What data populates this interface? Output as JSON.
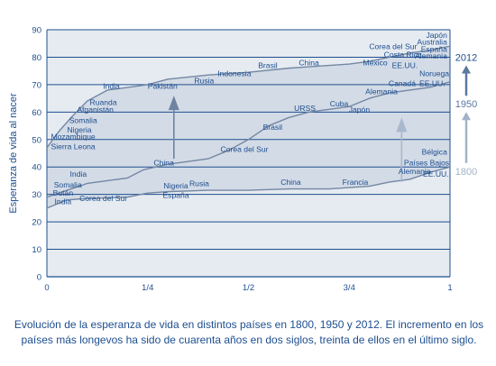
{
  "caption": {
    "line1": "Evolución de la esperanza de vida en distintos países en 1800, 1950 y 2012. El incremento en los",
    "line2": "países más longevos ha sido de cuarenta años en dos siglos, treinta de ellos en el último siglo."
  },
  "colors": {
    "plot_bg": "#e6ebf1",
    "gridline": "#1f4f8f",
    "curve": "#7487a4",
    "band_fill": "#d3dbe6",
    "text": "#1d4e8f",
    "arrow_fill": "#6f83a2",
    "arrow_light": "#a9b8cc",
    "year_2012": "#1d4e8f",
    "year_1950": "#5a78a0",
    "year_1800": "#a3b3c8"
  },
  "chart_data": {
    "type": "line",
    "title": "",
    "ylabel": "Esperanza de vida al nacer",
    "xlabel": "",
    "xlim": [
      0,
      1
    ],
    "ylim": [
      0,
      90
    ],
    "x_ticks": [
      {
        "value": 0,
        "label": "0"
      },
      {
        "value": 0.25,
        "label": "1/4"
      },
      {
        "value": 0.5,
        "label": "1/2"
      },
      {
        "value": 0.75,
        "label": "3/4"
      },
      {
        "value": 1,
        "label": "1"
      }
    ],
    "y_ticks": [
      0,
      10,
      20,
      30,
      40,
      50,
      60,
      70,
      80,
      90
    ],
    "grid": true,
    "series": [
      {
        "name": "2012",
        "x": [
          0,
          0.01,
          0.03,
          0.06,
          0.1,
          0.15,
          0.25,
          0.3,
          0.4,
          0.5,
          0.6,
          0.65,
          0.7,
          0.75,
          0.8,
          0.85,
          0.9,
          0.95,
          0.98,
          1.0
        ],
        "y": [
          47,
          49,
          53,
          58,
          64,
          68,
          70,
          72,
          73.5,
          74.5,
          76,
          76.5,
          77,
          77.5,
          78.5,
          80,
          81.5,
          82.5,
          83.5,
          84
        ]
      },
      {
        "name": "1950",
        "x": [
          0,
          0.06,
          0.1,
          0.15,
          0.2,
          0.24,
          0.27,
          0.3,
          0.35,
          0.4,
          0.45,
          0.5,
          0.55,
          0.6,
          0.65,
          0.7,
          0.75,
          0.8,
          0.85,
          0.9,
          0.95,
          1.0
        ],
        "y": [
          29,
          32,
          34,
          35,
          36,
          39,
          40,
          41,
          42,
          43,
          46,
          50,
          55,
          58,
          60,
          61,
          62,
          65,
          67,
          68,
          69,
          71
        ]
      },
      {
        "name": "1800",
        "x": [
          0,
          0.05,
          0.1,
          0.2,
          0.25,
          0.3,
          0.4,
          0.5,
          0.6,
          0.7,
          0.75,
          0.8,
          0.85,
          0.9,
          0.95,
          1.0
        ],
        "y": [
          25,
          28,
          28.5,
          29,
          30.5,
          31,
          31.5,
          31.5,
          32,
          32,
          32.5,
          33,
          34.5,
          35.5,
          38,
          40
        ]
      }
    ],
    "year_labels": [
      {
        "label": "2012",
        "y": 80
      },
      {
        "label": "1950",
        "y": 63
      },
      {
        "label": "1800",
        "y": 38.5
      }
    ],
    "arrows": [
      {
        "x": 0.315,
        "from": 43,
        "to": 66
      },
      {
        "x": 0.88,
        "from": 34.5,
        "to": 58
      }
    ],
    "annotations": [
      {
        "text": "Japón",
        "x": 0.993,
        "y": 88,
        "anchor": "end"
      },
      {
        "text": "Australia",
        "x": 0.993,
        "y": 85.5,
        "anchor": "end"
      },
      {
        "text": "España",
        "x": 0.993,
        "y": 83,
        "anchor": "end"
      },
      {
        "text": "Corea del Sur",
        "x": 0.918,
        "y": 84,
        "anchor": "end"
      },
      {
        "text": "Alemania",
        "x": 0.993,
        "y": 80.5,
        "anchor": "end"
      },
      {
        "text": "Costa Rica",
        "x": 0.93,
        "y": 81,
        "anchor": "end"
      },
      {
        "text": "México",
        "x": 0.845,
        "y": 78,
        "anchor": "end"
      },
      {
        "text": "EE.UU.",
        "x": 0.92,
        "y": 77,
        "anchor": "end"
      },
      {
        "text": "China",
        "x": 0.65,
        "y": 78,
        "anchor": "middle"
      },
      {
        "text": "Brasil",
        "x": 0.548,
        "y": 77,
        "anchor": "middle"
      },
      {
        "text": "Indonesia",
        "x": 0.465,
        "y": 74,
        "anchor": "middle"
      },
      {
        "text": "Rusia",
        "x": 0.39,
        "y": 71.5,
        "anchor": "middle"
      },
      {
        "text": "Pakistán",
        "x": 0.287,
        "y": 69.5,
        "anchor": "middle"
      },
      {
        "text": "India",
        "x": 0.16,
        "y": 69.5,
        "anchor": "middle"
      },
      {
        "text": "Ruanda",
        "x": 0.14,
        "y": 63.5,
        "anchor": "middle"
      },
      {
        "text": "Afganistán",
        "x": 0.12,
        "y": 61,
        "anchor": "middle"
      },
      {
        "text": "Somalia",
        "x": 0.09,
        "y": 57,
        "anchor": "middle"
      },
      {
        "text": "Nigeria",
        "x": 0.05,
        "y": 53.5,
        "anchor": "start"
      },
      {
        "text": "Mozambique",
        "x": 0.01,
        "y": 51,
        "anchor": "start"
      },
      {
        "text": "Sierra Leona",
        "x": 0.01,
        "y": 47.5,
        "anchor": "start"
      },
      {
        "text": "Noruega",
        "x": 0.998,
        "y": 74,
        "anchor": "end"
      },
      {
        "text": "Canadá",
        "x": 0.915,
        "y": 70.5,
        "anchor": "end"
      },
      {
        "text": "EE.UU.",
        "x": 0.988,
        "y": 70.5,
        "anchor": "end"
      },
      {
        "text": "Alemania",
        "x": 0.83,
        "y": 67.5,
        "anchor": "middle"
      },
      {
        "text": "Japón",
        "x": 0.775,
        "y": 61,
        "anchor": "middle"
      },
      {
        "text": "Cuba",
        "x": 0.725,
        "y": 63,
        "anchor": "middle"
      },
      {
        "text": "URSS",
        "x": 0.64,
        "y": 61.5,
        "anchor": "middle"
      },
      {
        "text": "Brasil",
        "x": 0.56,
        "y": 54.5,
        "anchor": "middle"
      },
      {
        "text": "Corea del Sur",
        "x": 0.49,
        "y": 46.5,
        "anchor": "middle"
      },
      {
        "text": "China",
        "x": 0.29,
        "y": 41.5,
        "anchor": "middle"
      },
      {
        "text": "India",
        "x": 0.078,
        "y": 37.5,
        "anchor": "middle"
      },
      {
        "text": "Bélgica",
        "x": 0.993,
        "y": 45.5,
        "anchor": "end"
      },
      {
        "text": "Países Bajos",
        "x": 0.998,
        "y": 41.5,
        "anchor": "end"
      },
      {
        "text": "EE.UU.",
        "x": 0.997,
        "y": 37.5,
        "anchor": "end"
      },
      {
        "text": "Alemania",
        "x": 0.912,
        "y": 38.5,
        "anchor": "middle"
      },
      {
        "text": "Francia",
        "x": 0.765,
        "y": 34.5,
        "anchor": "middle"
      },
      {
        "text": "China",
        "x": 0.605,
        "y": 34.5,
        "anchor": "middle"
      },
      {
        "text": "Rusia",
        "x": 0.378,
        "y": 34,
        "anchor": "middle"
      },
      {
        "text": "Nigeria",
        "x": 0.32,
        "y": 33.2,
        "anchor": "middle"
      },
      {
        "text": "España",
        "x": 0.32,
        "y": 29.8,
        "anchor": "middle"
      },
      {
        "text": "Corea del Sur",
        "x": 0.14,
        "y": 28.5,
        "anchor": "middle"
      },
      {
        "text": "Somalia",
        "x": 0.052,
        "y": 33.5,
        "anchor": "middle"
      },
      {
        "text": "Bután",
        "x": 0.04,
        "y": 30.5,
        "anchor": "middle"
      },
      {
        "text": "India",
        "x": 0.04,
        "y": 27.5,
        "anchor": "middle"
      }
    ]
  }
}
